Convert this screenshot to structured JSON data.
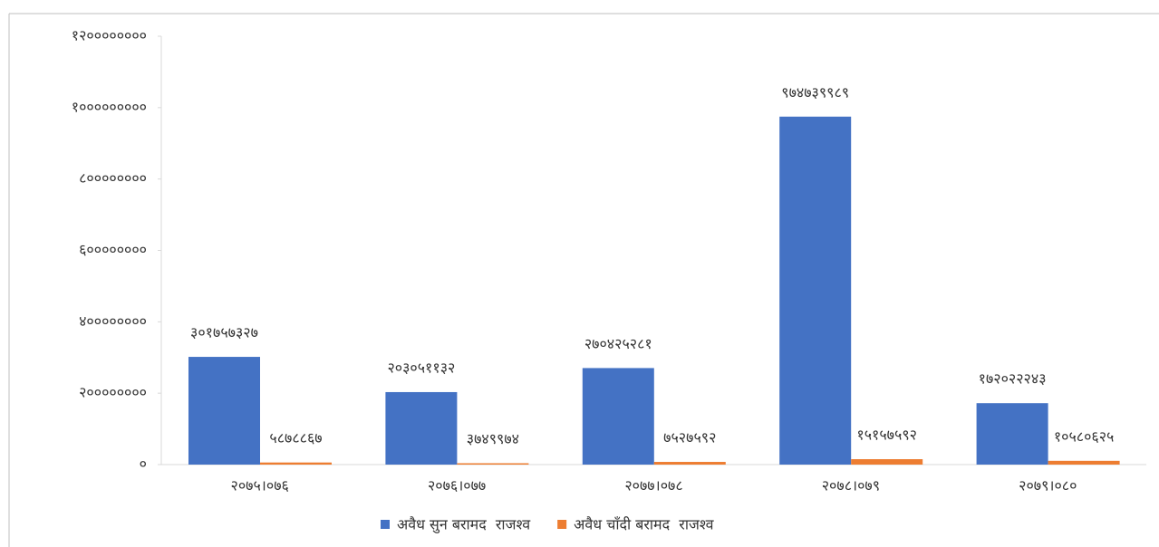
{
  "chart_data": {
    "type": "bar",
    "categories": [
      "२०७५।०७६",
      "२०७६।०७७",
      "२०७७।०७८",
      "२०७८।०७९",
      "२०७९।०८०"
    ],
    "series": [
      {
        "name": "अवैध सुन बरामद  राजश्व",
        "color": "#4472c4",
        "values": [
          301757327,
          203051132,
          270425281,
          974739989,
          172022243
        ],
        "value_labels": [
          "३०१७५७३२७",
          "२०३०५११३२",
          "२७०४२५२८१",
          "९७४७३९९८९",
          "१७२०२२२४३"
        ]
      },
      {
        "name": "अवैध चाँदी बरामद  राजश्व",
        "color": "#ed7d31",
        "values": [
          5878867,
          3749974,
          7527592,
          15157592,
          10580625
        ],
        "value_labels": [
          "५८७८८६७",
          "३७४९९७४",
          "७५२७५९२",
          "१५१५७५९२",
          "१०५८०६२५"
        ]
      }
    ],
    "ylim": [
      0,
      1200000000
    ],
    "yticks": [
      {
        "value": 0,
        "label": "०"
      },
      {
        "value": 200000000,
        "label": "२००००००००"
      },
      {
        "value": 400000000,
        "label": "४००००००००"
      },
      {
        "value": 600000000,
        "label": "६००००००००"
      },
      {
        "value": 800000000,
        "label": "८००००००००"
      },
      {
        "value": 1000000000,
        "label": "१०००००००००"
      },
      {
        "value": 1200000000,
        "label": "१२००००००००"
      }
    ],
    "grid": false,
    "legend": "bottom"
  }
}
